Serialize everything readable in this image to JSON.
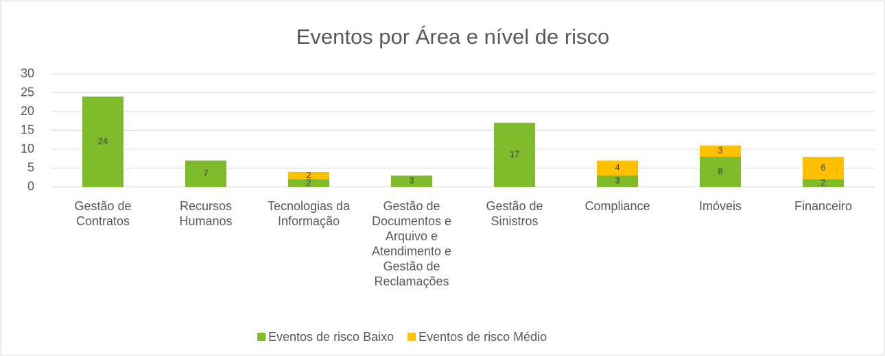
{
  "chart_data": {
    "type": "stacked_bar",
    "title": "Eventos por Área e nível de risco",
    "categories": [
      "Gestão de Contratos",
      "Recursos Humanos",
      "Tecnologias da Informação",
      "Gestão de Documentos e Arquivo e Atendimento e Gestão de Reclamações",
      "Gestão de Sinistros",
      "Compliance",
      "Imóveis",
      "Financeiro"
    ],
    "series": [
      {
        "name": "Eventos de risco Baixo",
        "color": "#7fba2a",
        "values": [
          24,
          7,
          2,
          3,
          17,
          3,
          8,
          2
        ]
      },
      {
        "name": "Eventos de risco Médio",
        "color": "#ffc000",
        "values": [
          null,
          null,
          2,
          null,
          null,
          4,
          3,
          6
        ]
      }
    ],
    "ylim": [
      0,
      30
    ],
    "yticks": [
      0,
      5,
      10,
      15,
      20,
      25,
      30
    ],
    "grid": true,
    "legend": "bottom"
  }
}
